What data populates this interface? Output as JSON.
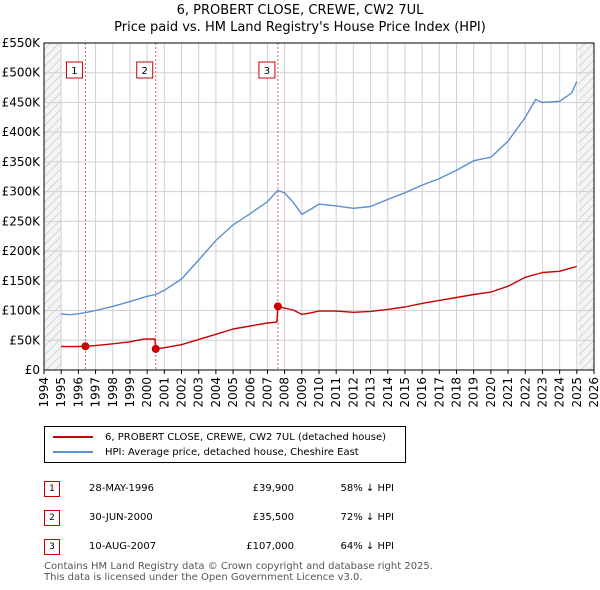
{
  "chart_data": {
    "type": "line",
    "title": "6, PROBERT CLOSE, CREWE, CW2 7UL",
    "subtitle": "Price paid vs. HM Land Registry's House Price Index (HPI)",
    "xlim": [
      1994,
      2026
    ],
    "ylim": [
      0,
      550000
    ],
    "x_ticks": [
      "1994",
      "1995",
      "1996",
      "1997",
      "1998",
      "1999",
      "2000",
      "2001",
      "2002",
      "2003",
      "2004",
      "2005",
      "2006",
      "2007",
      "2008",
      "2009",
      "2010",
      "2011",
      "2012",
      "2013",
      "2014",
      "2015",
      "2016",
      "2017",
      "2018",
      "2019",
      "2020",
      "2021",
      "2022",
      "2023",
      "2024",
      "2025",
      "2026"
    ],
    "y_ticks": [
      {
        "value": 0,
        "label": "£0"
      },
      {
        "value": 50000,
        "label": "£50K"
      },
      {
        "value": 100000,
        "label": "£100K"
      },
      {
        "value": 150000,
        "label": "£150K"
      },
      {
        "value": 200000,
        "label": "£200K"
      },
      {
        "value": 250000,
        "label": "£250K"
      },
      {
        "value": 300000,
        "label": "£300K"
      },
      {
        "value": 350000,
        "label": "£350K"
      },
      {
        "value": 400000,
        "label": "£400K"
      },
      {
        "value": 450000,
        "label": "£450K"
      },
      {
        "value": 500000,
        "label": "£500K"
      },
      {
        "value": 550000,
        "label": "£550K"
      }
    ],
    "hatch_before": 1995.0,
    "hatch_after": 2025.1,
    "series": [
      {
        "name": "6, PROBERT CLOSE, CREWE, CW2 7UL (detached house)",
        "color": "#cc0000",
        "points": [
          [
            1995.0,
            39500
          ],
          [
            1995.5,
            39300
          ],
          [
            1996.0,
            39600
          ],
          [
            1996.41,
            39900
          ],
          [
            1997.0,
            41000
          ],
          [
            1998.0,
            44000
          ],
          [
            1999.0,
            47500
          ],
          [
            1999.8,
            52000
          ],
          [
            2000.45,
            52300
          ],
          [
            2000.5,
            35500
          ],
          [
            2001.0,
            37500
          ],
          [
            2002.0,
            42500
          ],
          [
            2003.0,
            51500
          ],
          [
            2004.0,
            60000
          ],
          [
            2005.0,
            69000
          ],
          [
            2006.0,
            74000
          ],
          [
            2007.0,
            79000
          ],
          [
            2007.55,
            80500
          ],
          [
            2007.61,
            107000
          ],
          [
            2008.0,
            104000
          ],
          [
            2008.5,
            101000
          ],
          [
            2009.0,
            93500
          ],
          [
            2009.5,
            96000
          ],
          [
            2010.0,
            99000
          ],
          [
            2011.0,
            99000
          ],
          [
            2012.0,
            97000
          ],
          [
            2013.0,
            98500
          ],
          [
            2014.0,
            102000
          ],
          [
            2015.0,
            106000
          ],
          [
            2016.0,
            112000
          ],
          [
            2017.0,
            117000
          ],
          [
            2018.0,
            122000
          ],
          [
            2019.0,
            127000
          ],
          [
            2020.0,
            131000
          ],
          [
            2021.0,
            141000
          ],
          [
            2022.0,
            156000
          ],
          [
            2023.0,
            164000
          ],
          [
            2024.0,
            166000
          ],
          [
            2024.6,
            171000
          ],
          [
            2025.0,
            174000
          ]
        ]
      },
      {
        "name": "HPI: Average price, detached house, Cheshire East",
        "color": "#5a8fd0",
        "points": [
          [
            1995.0,
            94000
          ],
          [
            1995.5,
            93000
          ],
          [
            1996.0,
            94500
          ],
          [
            1996.5,
            97000
          ],
          [
            1997.0,
            100000
          ],
          [
            1998.0,
            107000
          ],
          [
            1999.0,
            115000
          ],
          [
            2000.0,
            124000
          ],
          [
            2000.5,
            127000
          ],
          [
            2001.0,
            134000
          ],
          [
            2002.0,
            153000
          ],
          [
            2003.0,
            185000
          ],
          [
            2004.0,
            218000
          ],
          [
            2005.0,
            244000
          ],
          [
            2006.0,
            263000
          ],
          [
            2007.0,
            283000
          ],
          [
            2007.6,
            302000
          ],
          [
            2008.0,
            298000
          ],
          [
            2008.5,
            282000
          ],
          [
            2009.0,
            262000
          ],
          [
            2009.5,
            270000
          ],
          [
            2010.0,
            279000
          ],
          [
            2011.0,
            276000
          ],
          [
            2012.0,
            272000
          ],
          [
            2013.0,
            275000
          ],
          [
            2014.0,
            287000
          ],
          [
            2015.0,
            298000
          ],
          [
            2016.0,
            311000
          ],
          [
            2017.0,
            322000
          ],
          [
            2018.0,
            336000
          ],
          [
            2019.0,
            352000
          ],
          [
            2020.0,
            358000
          ],
          [
            2021.0,
            385000
          ],
          [
            2022.0,
            425000
          ],
          [
            2022.6,
            455000
          ],
          [
            2023.0,
            450000
          ],
          [
            2024.0,
            452000
          ],
          [
            2024.7,
            466000
          ],
          [
            2025.0,
            485000
          ]
        ]
      }
    ],
    "sales": [
      {
        "label": "1",
        "x": 1996.41,
        "value": 39900
      },
      {
        "label": "2",
        "x": 2000.5,
        "value": 35500
      },
      {
        "label": "3",
        "x": 2007.61,
        "value": 107000
      }
    ]
  },
  "legend": {
    "property": "6, PROBERT CLOSE, CREWE, CW2 7UL (detached house)",
    "hpi": "HPI: Average price, detached house, Cheshire East"
  },
  "table": [
    {
      "num": "1",
      "date": "28-MAY-1996",
      "price": "£39,900",
      "pct": "58% ↓ HPI"
    },
    {
      "num": "2",
      "date": "30-JUN-2000",
      "price": "£35,500",
      "pct": "72% ↓ HPI"
    },
    {
      "num": "3",
      "date": "10-AUG-2007",
      "price": "£107,000",
      "pct": "64% ↓ HPI"
    }
  ],
  "footer": {
    "line1": "Contains HM Land Registry data © Crown copyright and database right 2025.",
    "line2": "This data is licensed under the Open Government Licence v3.0."
  },
  "colors": {
    "property": "#cc0000",
    "hpi": "#5a8fd0",
    "grid": "#d0d0d0",
    "plot_bg": "#ffffff"
  }
}
